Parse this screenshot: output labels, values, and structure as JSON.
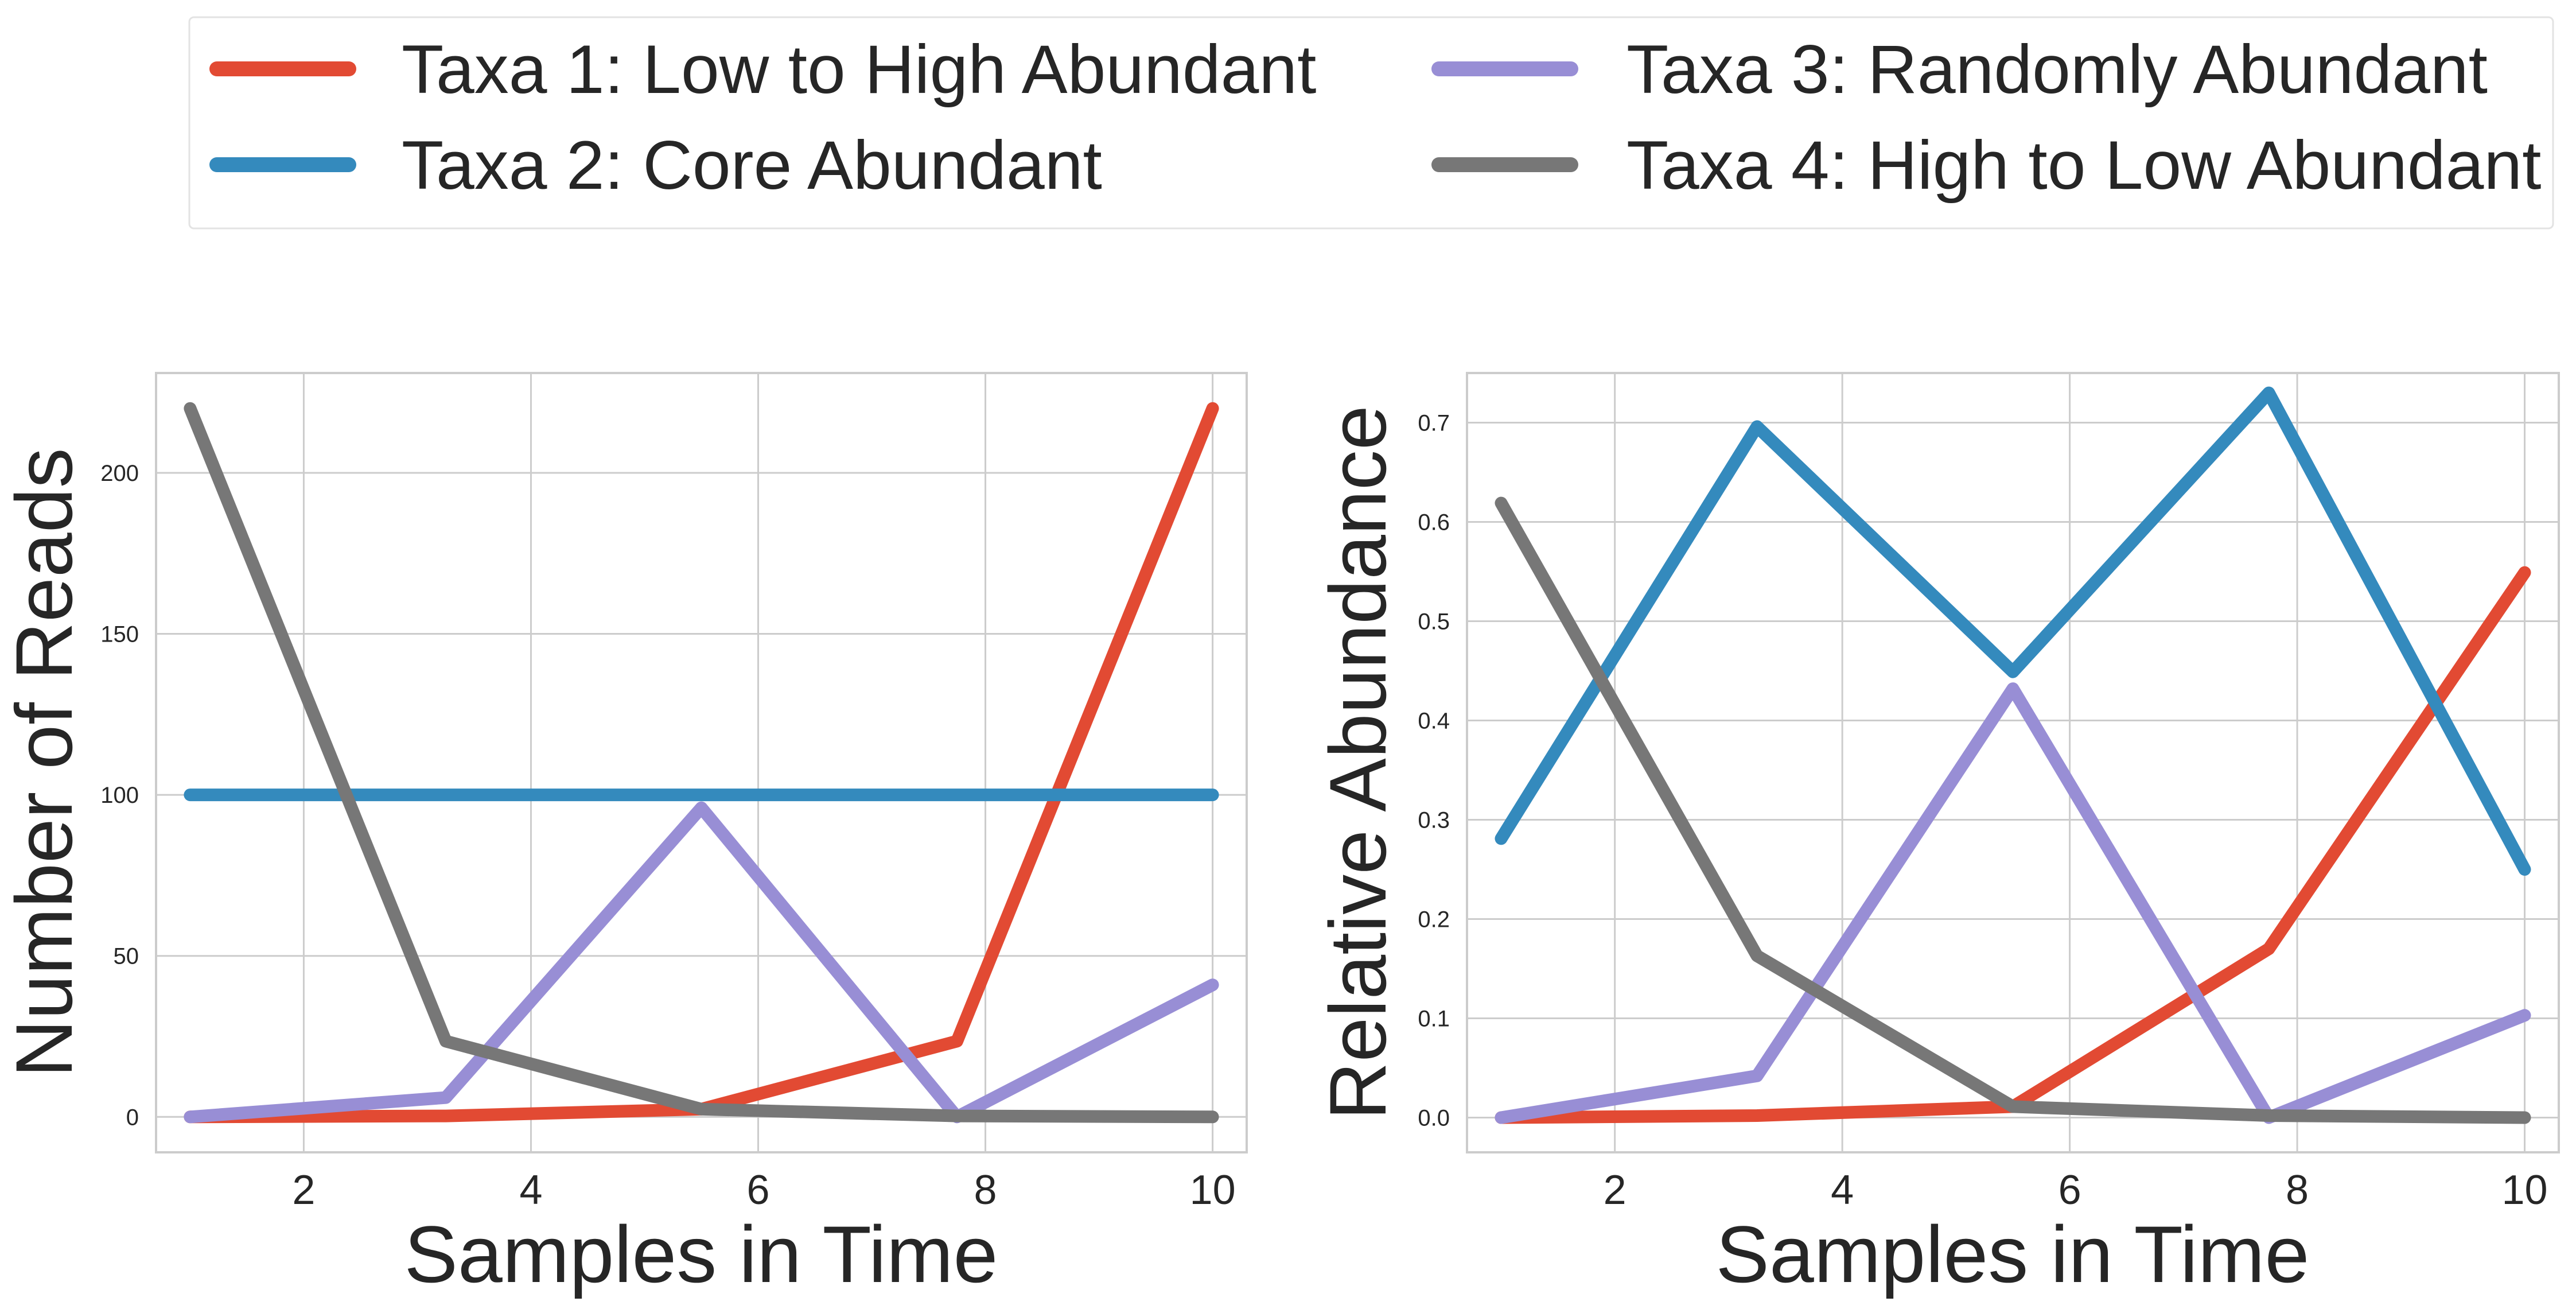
{
  "legend": {
    "items": [
      {
        "label": "Taxa 1: Low to High Abundant",
        "color": "#e24a33"
      },
      {
        "label": "Taxa 2: Core Abundant",
        "color": "#348abd"
      },
      {
        "label": "Taxa 3: Randomly Abundant",
        "color": "#988ed5"
      },
      {
        "label": "Taxa 4: High to Low Abundant",
        "color": "#777777"
      }
    ]
  },
  "chart_data": [
    {
      "type": "line",
      "xlabel": "Samples in Time",
      "ylabel": "Number of Reads",
      "xlim": [
        0.7,
        10.3
      ],
      "ylim": [
        -11,
        231
      ],
      "xticks": [
        2,
        4,
        6,
        8,
        10
      ],
      "xtick_labels": [
        "2",
        "4",
        "6",
        "8",
        "10"
      ],
      "yticks": [
        0,
        50,
        100,
        150,
        200
      ],
      "ytick_labels": [
        "0",
        "50",
        "100",
        "150",
        "200"
      ],
      "grid": true,
      "x": [
        1,
        3.25,
        5.5,
        7.75,
        10
      ],
      "series": [
        {
          "name": "Taxa 1: Low to High Abundant",
          "color": "#e24a33",
          "values": [
            0,
            0.3,
            2.4,
            23.5,
            220
          ]
        },
        {
          "name": "Taxa 2: Core Abundant",
          "color": "#348abd",
          "values": [
            100,
            100,
            100,
            100,
            100
          ]
        },
        {
          "name": "Taxa 3: Randomly Abundant",
          "color": "#988ed5",
          "values": [
            0,
            6,
            96,
            0,
            41
          ]
        },
        {
          "name": "Taxa 4: High to Low Abundant",
          "color": "#777777",
          "values": [
            220,
            23.5,
            2.4,
            0.3,
            0
          ]
        }
      ]
    },
    {
      "type": "line",
      "xlabel": "Samples in Time",
      "ylabel": "Relative Abundance",
      "xlim": [
        0.7,
        10.3
      ],
      "ylim": [
        -0.035,
        0.75
      ],
      "xticks": [
        2,
        4,
        6,
        8,
        10
      ],
      "xtick_labels": [
        "2",
        "4",
        "6",
        "8",
        "10"
      ],
      "yticks": [
        0,
        0.1,
        0.2,
        0.3,
        0.4,
        0.5,
        0.6,
        0.7
      ],
      "ytick_labels": [
        "0.0",
        "0.1",
        "0.2",
        "0.3",
        "0.4",
        "0.5",
        "0.6",
        "0.7"
      ],
      "grid": true,
      "x": [
        1,
        3.25,
        5.5,
        7.75,
        10
      ],
      "series": [
        {
          "name": "Taxa 1: Low to High Abundant",
          "color": "#e24a33",
          "values": [
            0,
            0.002,
            0.011,
            0.17,
            0.549
          ]
        },
        {
          "name": "Taxa 2: Core Abundant",
          "color": "#348abd",
          "values": [
            0.281,
            0.696,
            0.449,
            0.73,
            0.25
          ]
        },
        {
          "name": "Taxa 3: Randomly Abundant",
          "color": "#988ed5",
          "values": [
            0,
            0.042,
            0.432,
            0,
            0.103
          ]
        },
        {
          "name": "Taxa 4: High to Low Abundant",
          "color": "#777777",
          "values": [
            0.619,
            0.163,
            0.011,
            0.002,
            0
          ]
        }
      ]
    }
  ]
}
